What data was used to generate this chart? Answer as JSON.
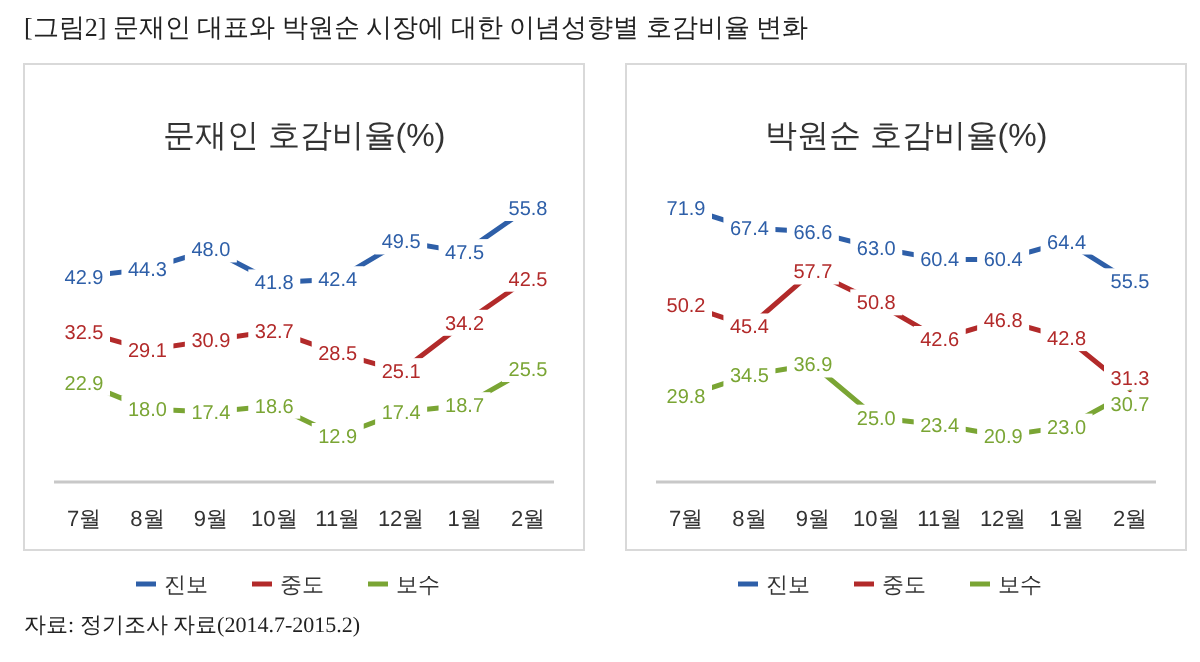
{
  "chart_data": [
    {
      "type": "line",
      "title": "문재인 호감비율(%)",
      "annotations": [
        "[그림2] 문재인 대표와 박원순 시장에 대한 이념성향별 호감비율 변화",
        "자료: 정기조사 자료(2014.7-2015.2)"
      ],
      "categories": [
        "7월",
        "8월",
        "9월",
        "10월",
        "11월",
        "12월",
        "1월",
        "2월"
      ],
      "tick_labels": "x",
      "marker": "none",
      "legend": "bottom",
      "series": [
        {
          "name": "진보",
          "color": "#2e5fa8",
          "values": [
            42.9,
            44.3,
            48.0,
            41.8,
            42.4,
            49.5,
            47.5,
            55.8
          ],
          "value_labels": [
            "42.9",
            "44.3",
            "48.0",
            "41.8",
            "42.4",
            "49.5",
            "47.5",
            "55.8"
          ]
        },
        {
          "name": "중도",
          "color": "#b22a2a",
          "values": [
            32.5,
            29.1,
            30.9,
            32.7,
            28.5,
            25.1,
            34.2,
            42.5
          ],
          "value_labels": [
            "32.5",
            "29.1",
            "30.9",
            "32.7",
            "28.5",
            "25.1",
            "34.2",
            "42.5"
          ]
        },
        {
          "name": "보수",
          "color": "#7aa534",
          "values": [
            22.9,
            18.0,
            17.4,
            18.6,
            12.9,
            17.4,
            18.7,
            25.5
          ],
          "value_labels": [
            "22.9",
            "18.0",
            "17.4",
            "18.6",
            "12.9",
            "17.4",
            "18.7",
            "25.5"
          ]
        }
      ]
    },
    {
      "type": "line",
      "title": "박원순 호감비율(%)",
      "categories": [
        "7월",
        "8월",
        "9월",
        "10월",
        "11월",
        "12월",
        "1월",
        "2월"
      ],
      "tick_labels": "x",
      "marker": "none",
      "legend": "bottom",
      "series": [
        {
          "name": "진보",
          "color": "#2e5fa8",
          "values": [
            71.9,
            67.4,
            66.6,
            63.0,
            60.4,
            60.4,
            64.4,
            55.5
          ],
          "value_labels": [
            "71.9",
            "67.4",
            "66.6",
            "63.0",
            "60.4",
            "60.4",
            "64.4",
            "55.5"
          ]
        },
        {
          "name": "중도",
          "color": "#b22a2a",
          "values": [
            50.2,
            45.4,
            57.7,
            50.8,
            42.6,
            46.8,
            42.8,
            31.3
          ],
          "value_labels": [
            "50.2",
            "45.4",
            "57.7",
            "50.8",
            "42.6",
            "46.8",
            "42.8",
            "31.3"
          ]
        },
        {
          "name": "보수",
          "color": "#7aa534",
          "values": [
            29.8,
            34.5,
            36.9,
            25.0,
            23.4,
            20.9,
            23.0,
            30.7
          ],
          "value_labels": [
            "29.8",
            "34.5",
            "36.9",
            "25.0",
            "23.4",
            "20.9",
            "23.0",
            "30.7"
          ]
        }
      ]
    }
  ]
}
